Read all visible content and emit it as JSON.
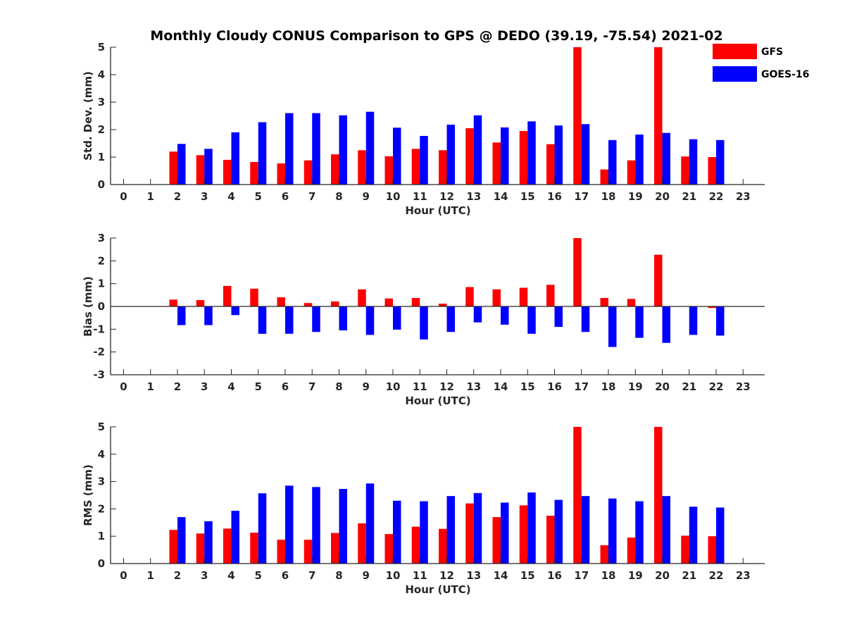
{
  "title": "Monthly Cloudy CONUS Comparison to GPS @ DEDO (39.19, -75.54) 2021-02",
  "colors": {
    "GFS": "#ff0000",
    "GOES-16": "#0000ff"
  },
  "legend": {
    "placement": "top-right",
    "entries": [
      "GFS",
      "GOES-16"
    ]
  },
  "chart_data": [
    {
      "type": "bar",
      "ylabel": "Std. Dev. (mm)",
      "xlabel": "Hour (UTC)",
      "ylim": [
        0,
        5
      ],
      "yticks": [
        0,
        1,
        2,
        3,
        4,
        5
      ],
      "categories": [
        0,
        1,
        2,
        3,
        4,
        5,
        6,
        7,
        8,
        9,
        10,
        11,
        12,
        13,
        14,
        15,
        16,
        17,
        18,
        19,
        20,
        21,
        22,
        23
      ],
      "grid": false,
      "series": [
        {
          "name": "GFS",
          "values": [
            null,
            null,
            1.2,
            1.07,
            0.9,
            0.82,
            0.77,
            0.88,
            1.1,
            1.25,
            1.03,
            1.3,
            1.25,
            2.05,
            1.53,
            1.95,
            1.47,
            5,
            0.55,
            0.88,
            5,
            1.02,
            1.0,
            null
          ]
        },
        {
          "name": "GOES-16",
          "values": [
            null,
            null,
            1.48,
            1.3,
            1.9,
            2.27,
            2.6,
            2.6,
            2.52,
            2.65,
            2.07,
            1.77,
            2.18,
            2.52,
            2.08,
            2.3,
            2.15,
            2.2,
            1.62,
            1.82,
            1.88,
            1.65,
            1.62,
            null
          ]
        }
      ]
    },
    {
      "type": "bar",
      "ylabel": "Bias (mm)",
      "xlabel": "Hour (UTC)",
      "ylim": [
        -3,
        3
      ],
      "yticks": [
        -3,
        -2,
        -1,
        0,
        1,
        2,
        3
      ],
      "categories": [
        0,
        1,
        2,
        3,
        4,
        5,
        6,
        7,
        8,
        9,
        10,
        11,
        12,
        13,
        14,
        15,
        16,
        17,
        18,
        19,
        20,
        21,
        22,
        23
      ],
      "grid": false,
      "series": [
        {
          "name": "GFS",
          "values": [
            null,
            null,
            0.3,
            0.28,
            0.9,
            0.78,
            0.4,
            0.15,
            0.22,
            0.75,
            0.35,
            0.37,
            0.12,
            0.85,
            0.75,
            0.82,
            0.95,
            3.0,
            0.37,
            0.33,
            2.27,
            null,
            -0.07,
            null
          ]
        },
        {
          "name": "GOES-16",
          "values": [
            null,
            null,
            -0.82,
            -0.82,
            -0.38,
            -1.2,
            -1.2,
            -1.12,
            -1.05,
            -1.25,
            -1.02,
            -1.45,
            -1.12,
            -0.7,
            -0.8,
            -1.2,
            -0.9,
            -1.12,
            -1.78,
            -1.38,
            -1.6,
            -1.25,
            -1.28,
            null
          ]
        }
      ]
    },
    {
      "type": "bar",
      "ylabel": "RMS (mm)",
      "xlabel": "Hour (UTC)",
      "ylim": [
        0,
        5
      ],
      "yticks": [
        0,
        1,
        2,
        3,
        4,
        5
      ],
      "categories": [
        0,
        1,
        2,
        3,
        4,
        5,
        6,
        7,
        8,
        9,
        10,
        11,
        12,
        13,
        14,
        15,
        16,
        17,
        18,
        19,
        20,
        21,
        22,
        23
      ],
      "grid": false,
      "series": [
        {
          "name": "GFS",
          "values": [
            null,
            null,
            1.23,
            1.1,
            1.28,
            1.13,
            0.87,
            0.87,
            1.12,
            1.47,
            1.08,
            1.35,
            1.27,
            2.2,
            1.7,
            2.13,
            1.75,
            5,
            0.67,
            0.95,
            5,
            1.02,
            1.0,
            null
          ]
        },
        {
          "name": "GOES-16",
          "values": [
            null,
            null,
            1.7,
            1.55,
            1.93,
            2.57,
            2.85,
            2.8,
            2.73,
            2.93,
            2.3,
            2.28,
            2.47,
            2.58,
            2.23,
            2.6,
            2.33,
            2.47,
            2.38,
            2.28,
            2.47,
            2.08,
            2.05,
            null
          ]
        }
      ]
    }
  ]
}
